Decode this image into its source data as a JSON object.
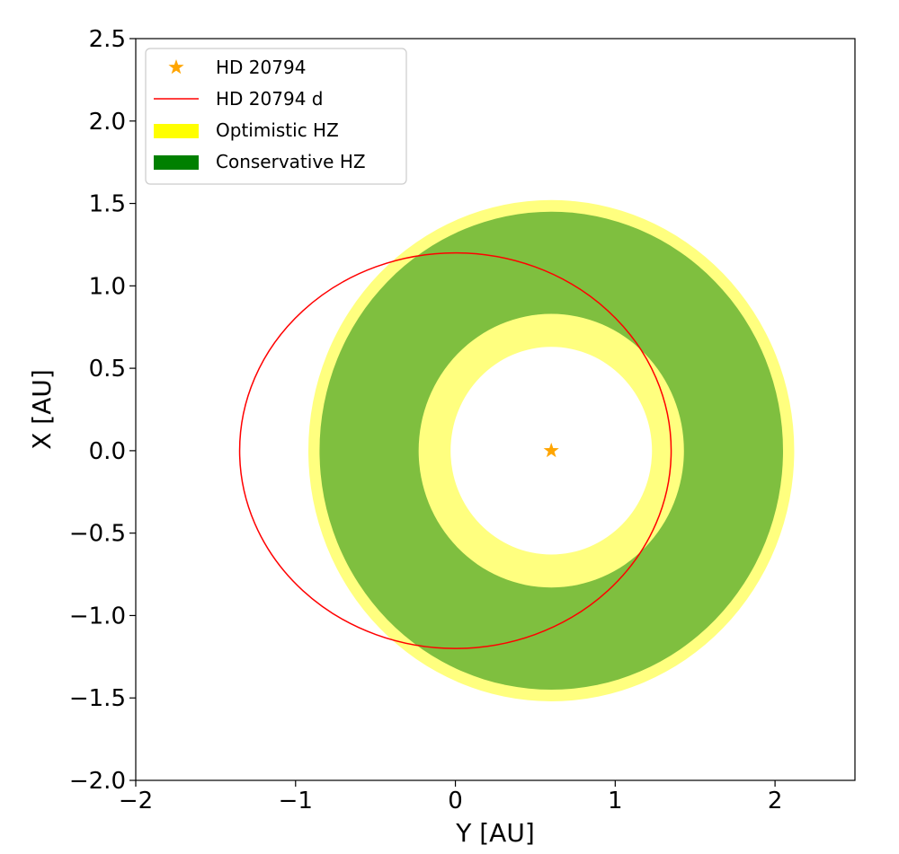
{
  "chart_data": {
    "type": "scatter",
    "title": "",
    "xlabel": "Y [AU]",
    "ylabel": "X [AU]",
    "xlim": [
      -2,
      2.5
    ],
    "ylim": [
      -2,
      2.5
    ],
    "x_ticks": [
      -2,
      -1,
      0,
      1,
      2
    ],
    "x_tick_labels": [
      "−2",
      "−1",
      "0",
      "1",
      "2"
    ],
    "y_ticks": [
      -2.0,
      -1.5,
      -1.0,
      -0.5,
      0.0,
      0.5,
      1.0,
      1.5,
      2.0,
      2.5
    ],
    "y_tick_labels": [
      "−2.0",
      "−1.5",
      "−1.0",
      "−0.5",
      "0.0",
      "0.5",
      "1.0",
      "1.5",
      "2.0",
      "2.5"
    ],
    "grid": false,
    "legend_position": "top-left",
    "star": {
      "name": "HD 20794",
      "x": 0.6,
      "y": 0.0,
      "color": "#ffa500"
    },
    "orbit": {
      "name": "HD 20794 d",
      "center_x": 0.0,
      "center_y": 0.0,
      "semi_axis_x": 1.35,
      "semi_axis_y": 1.2,
      "color": "#ff0000"
    },
    "optimistic_hz": {
      "name": "Optimistic HZ",
      "center_x": 0.6,
      "center_y": 0.0,
      "inner_radius": 0.63,
      "outer_radius": 1.52,
      "color": "#ffff00",
      "alpha": 0.5
    },
    "conservative_hz": {
      "name": "Conservative HZ",
      "center_x": 0.6,
      "center_y": 0.0,
      "inner_radius": 0.83,
      "outer_radius": 1.45,
      "color": "#008000",
      "alpha": 0.5
    }
  }
}
